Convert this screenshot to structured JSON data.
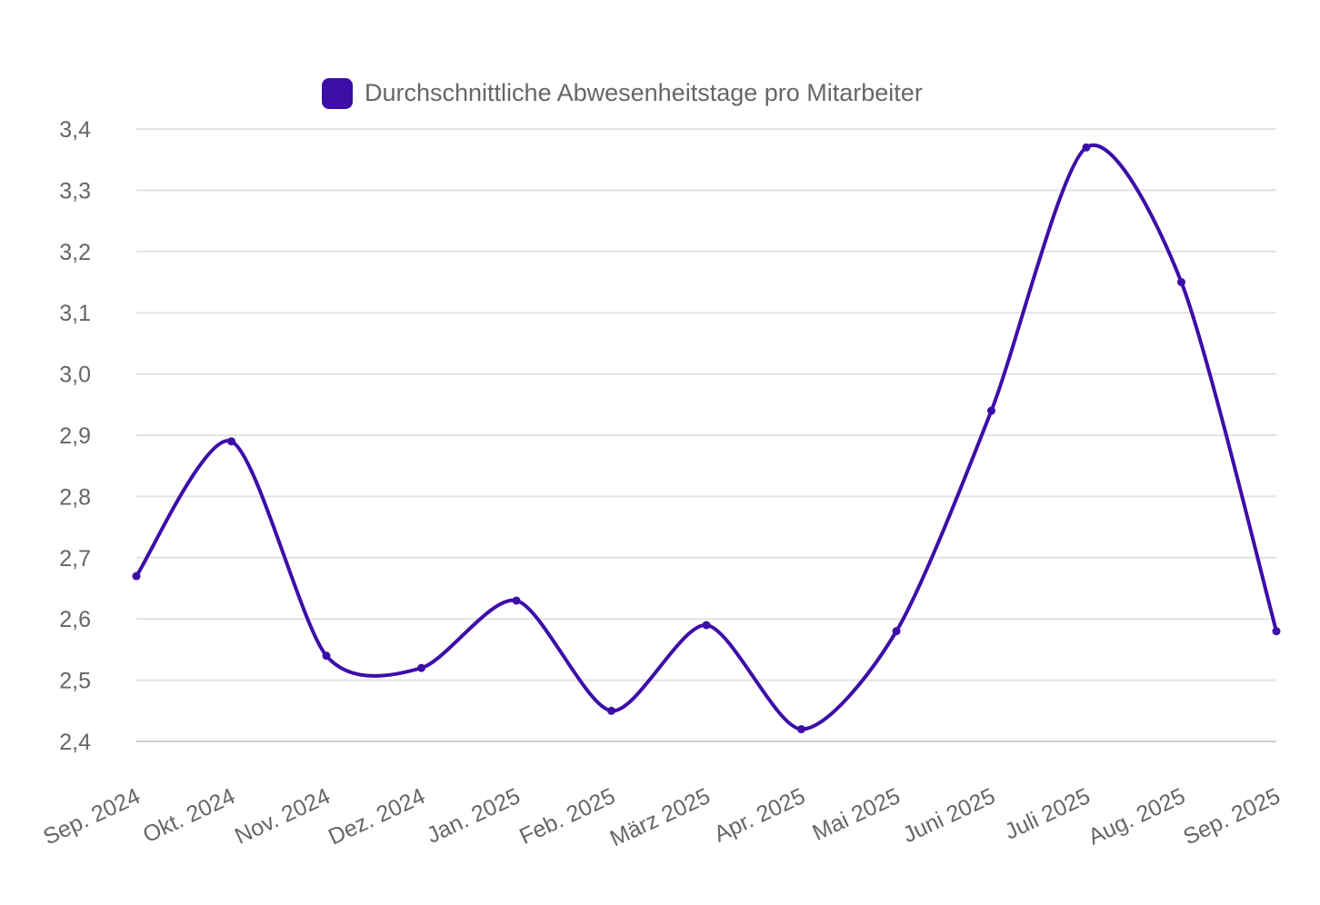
{
  "chart_data": {
    "type": "line",
    "categories": [
      "Sep. 2024",
      "Okt. 2024",
      "Nov. 2024",
      "Dez. 2024",
      "Jan. 2025",
      "Feb. 2025",
      "März 2025",
      "Apr. 2025",
      "Mai 2025",
      "Juni 2025",
      "Juli 2025",
      "Aug. 2025",
      "Sep. 2025"
    ],
    "series": [
      {
        "name": "Durchschnittliche Abwesenheitstage pro Mitarbeiter",
        "values": [
          2.67,
          2.89,
          2.54,
          2.52,
          2.63,
          2.45,
          2.59,
          2.42,
          2.58,
          2.94,
          3.37,
          3.15,
          2.58
        ],
        "color": "#3d0da8"
      }
    ],
    "yticks": [
      "2,4",
      "2,5",
      "2,6",
      "2,7",
      "2,8",
      "2,9",
      "3,0",
      "3,1",
      "3,2",
      "3,3",
      "3,4"
    ],
    "ylim": [
      2.4,
      3.4
    ],
    "grid": true,
    "legend_position": "top-center",
    "title": "",
    "xlabel": "",
    "ylabel": ""
  }
}
